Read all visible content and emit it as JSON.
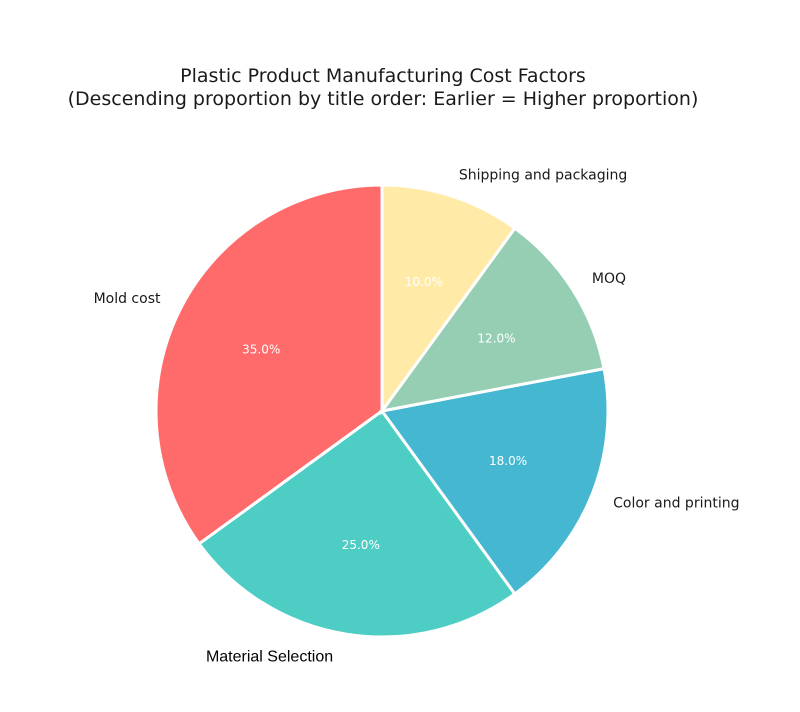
{
  "chart_data": {
    "type": "pie",
    "title": "Plastic Product Manufacturing Cost Factors",
    "subtitle": "(Descending proportion by title order: Earlier = Higher proportion)",
    "start_angle_deg": 90,
    "direction": "counterclockwise",
    "slices": [
      {
        "label": "Mold cost",
        "value": 35.0,
        "display": "35.0%",
        "color": "#FF6B6B"
      },
      {
        "label": "Material Selection",
        "value": 25.0,
        "display": "25.0%",
        "color": "#4ECDC4"
      },
      {
        "label": "Color and printing",
        "value": 18.0,
        "display": "18.0%",
        "color": "#45B7D1"
      },
      {
        "label": "MOQ",
        "value": 12.0,
        "display": "12.0%",
        "color": "#96CEB4"
      },
      {
        "label": "Shipping and packaging",
        "value": 10.0,
        "display": "10.0%",
        "color": "#FFEAA7"
      }
    ],
    "legend": "none"
  }
}
